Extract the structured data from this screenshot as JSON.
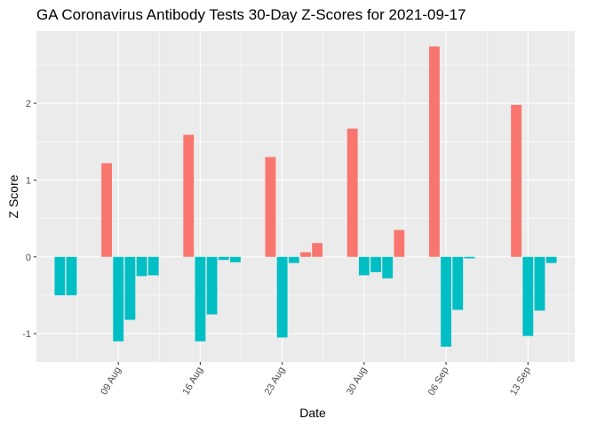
{
  "chart_data": {
    "type": "bar",
    "title": "GA Coronavirus Antibody Tests 30-Day Z-Scores for 2021-09-17",
    "xlabel": "Date",
    "ylabel": "Z Score",
    "ylim": [
      -1.37,
      2.94
    ],
    "xlim": [
      "2021-08-02",
      "2021-09-17"
    ],
    "grid": true,
    "legend": "none",
    "yticks": [
      -1,
      0,
      1,
      2
    ],
    "xticks": [
      {
        "date": "2021-08-09",
        "label": "09 Aug"
      },
      {
        "date": "2021-08-16",
        "label": "16 Aug"
      },
      {
        "date": "2021-08-23",
        "label": "23 Aug"
      },
      {
        "date": "2021-08-30",
        "label": "30 Aug"
      },
      {
        "date": "2021-09-06",
        "label": "06 Sep"
      },
      {
        "date": "2021-09-13",
        "label": "13 Sep"
      }
    ],
    "colors": {
      "positive": "#F8766D",
      "negative": "#00BFC4"
    },
    "bars": [
      {
        "date": "2021-08-04",
        "value": -0.5
      },
      {
        "date": "2021-08-05",
        "value": -0.5
      },
      {
        "date": "2021-08-08",
        "value": 1.22
      },
      {
        "date": "2021-08-09",
        "value": -1.1
      },
      {
        "date": "2021-08-10",
        "value": -0.82
      },
      {
        "date": "2021-08-11",
        "value": -0.25
      },
      {
        "date": "2021-08-12",
        "value": -0.24
      },
      {
        "date": "2021-08-15",
        "value": 1.59
      },
      {
        "date": "2021-08-16",
        "value": -1.1
      },
      {
        "date": "2021-08-17",
        "value": -0.75
      },
      {
        "date": "2021-08-18",
        "value": -0.04
      },
      {
        "date": "2021-08-19",
        "value": -0.07
      },
      {
        "date": "2021-08-22",
        "value": 1.3
      },
      {
        "date": "2021-08-23",
        "value": -1.05
      },
      {
        "date": "2021-08-24",
        "value": -0.08
      },
      {
        "date": "2021-08-25",
        "value": 0.06
      },
      {
        "date": "2021-08-26",
        "value": 0.18
      },
      {
        "date": "2021-08-29",
        "value": 1.67
      },
      {
        "date": "2021-08-30",
        "value": -0.24
      },
      {
        "date": "2021-08-31",
        "value": -0.2
      },
      {
        "date": "2021-09-01",
        "value": -0.28
      },
      {
        "date": "2021-09-02",
        "value": 0.35
      },
      {
        "date": "2021-09-05",
        "value": 2.74
      },
      {
        "date": "2021-09-06",
        "value": -1.17
      },
      {
        "date": "2021-09-07",
        "value": -0.69
      },
      {
        "date": "2021-09-08",
        "value": -0.02
      },
      {
        "date": "2021-09-12",
        "value": 1.98
      },
      {
        "date": "2021-09-13",
        "value": -1.03
      },
      {
        "date": "2021-09-14",
        "value": -0.7
      },
      {
        "date": "2021-09-15",
        "value": -0.08
      }
    ]
  }
}
